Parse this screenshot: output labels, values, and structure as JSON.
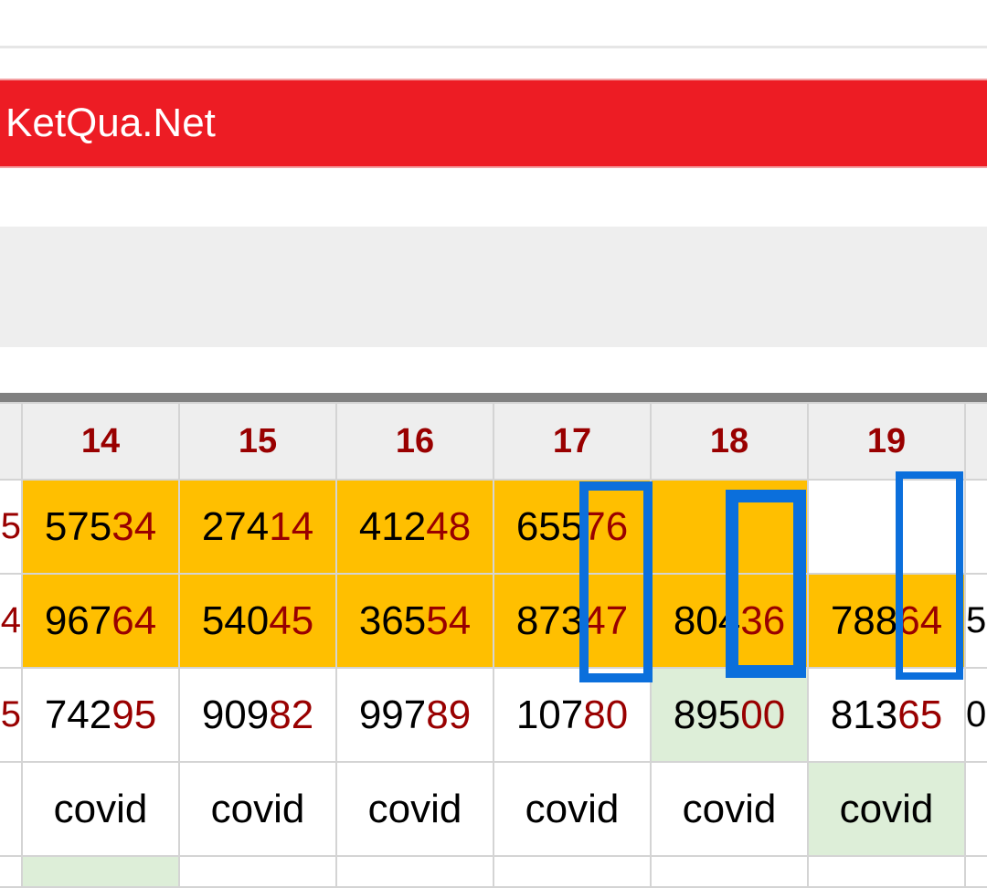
{
  "banner": {
    "title": "KetQua.Net"
  },
  "table": {
    "headers": [
      "",
      "14",
      "15",
      "16",
      "17",
      "18",
      "19",
      ""
    ],
    "rows": [
      {
        "cells": [
          {
            "a": "",
            "b": "5",
            "bg": "w"
          },
          {
            "a": "575",
            "b": "34",
            "bg": "y"
          },
          {
            "a": "274",
            "b": "14",
            "bg": "y"
          },
          {
            "a": "412",
            "b": "48",
            "bg": "y"
          },
          {
            "a": "655",
            "b": "76",
            "bg": "y"
          },
          {
            "a": "",
            "b": "",
            "bg": "y"
          },
          {
            "a": "",
            "b": "",
            "bg": "w"
          },
          {
            "a": "",
            "b": "",
            "bg": "w"
          }
        ]
      },
      {
        "cells": [
          {
            "a": "",
            "b": "4",
            "bg": "w"
          },
          {
            "a": "967",
            "b": "64",
            "bg": "y"
          },
          {
            "a": "540",
            "b": "45",
            "bg": "y"
          },
          {
            "a": "365",
            "b": "54",
            "bg": "y"
          },
          {
            "a": "873",
            "b": "47",
            "bg": "y"
          },
          {
            "a": "804",
            "b": "36",
            "bg": "y"
          },
          {
            "a": "788",
            "b": "64",
            "bg": "y"
          },
          {
            "a": "5",
            "b": "",
            "bg": "w"
          }
        ]
      },
      {
        "cells": [
          {
            "a": "",
            "b": "5",
            "bg": "w"
          },
          {
            "a": "742",
            "b": "95",
            "bg": "w"
          },
          {
            "a": "909",
            "b": "82",
            "bg": "w"
          },
          {
            "a": "997",
            "b": "89",
            "bg": "w"
          },
          {
            "a": "107",
            "b": "80",
            "bg": "w"
          },
          {
            "a": "895",
            "b": "00",
            "bg": "g"
          },
          {
            "a": "813",
            "b": "65",
            "bg": "w"
          },
          {
            "a": "0",
            "b": "",
            "bg": "w"
          }
        ]
      },
      {
        "cells": [
          {
            "a": "",
            "b": "",
            "bg": "w"
          },
          {
            "a": "covid",
            "b": "",
            "bg": "w"
          },
          {
            "a": "covid",
            "b": "",
            "bg": "w"
          },
          {
            "a": "covid",
            "b": "",
            "bg": "w"
          },
          {
            "a": "covid",
            "b": "",
            "bg": "w"
          },
          {
            "a": "covid",
            "b": "",
            "bg": "w"
          },
          {
            "a": "covid",
            "b": "",
            "bg": "g"
          },
          {
            "a": "",
            "b": "",
            "bg": "w"
          }
        ]
      },
      {
        "cells": [
          {
            "a": "",
            "b": "",
            "bg": "w"
          },
          {
            "a": "",
            "b": "",
            "bg": "g"
          },
          {
            "a": "",
            "b": "",
            "bg": "w"
          },
          {
            "a": "",
            "b": "",
            "bg": "w"
          },
          {
            "a": "",
            "b": "",
            "bg": "w"
          },
          {
            "a": "",
            "b": "",
            "bg": "w"
          },
          {
            "a": "",
            "b": "",
            "bg": "w"
          },
          {
            "a": "",
            "b": "",
            "bg": "w"
          }
        ]
      }
    ]
  },
  "colors": {
    "banner": "#ed1c24",
    "highlight": "#ffbf00",
    "green": "#ddeed8",
    "accent_digits": "#990000",
    "annotation_box": "#0b6fdc"
  }
}
